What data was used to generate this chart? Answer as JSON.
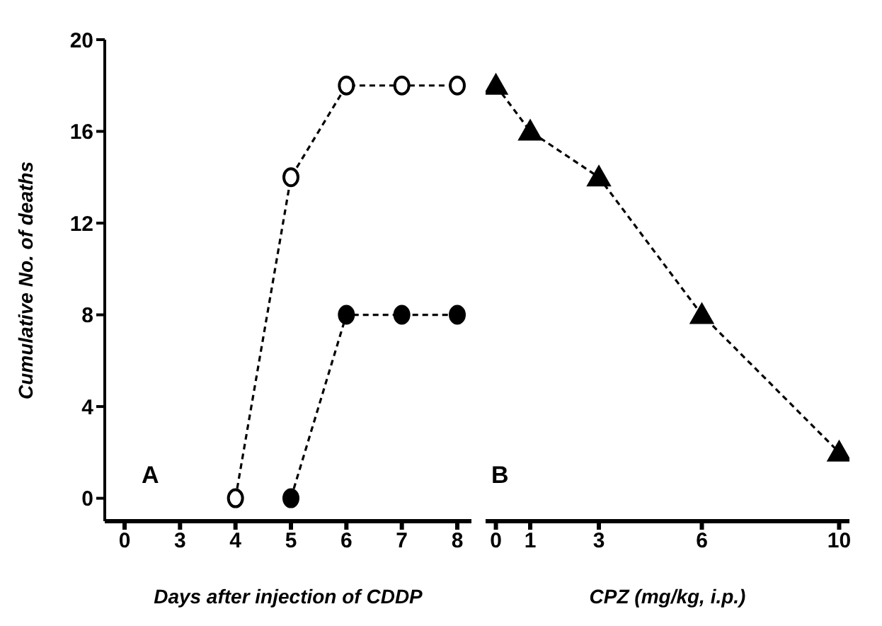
{
  "chart_data": [
    {
      "type": "line",
      "xlabel": "Days after injection of CDDP",
      "ylabel": "Cumulative No. of deaths",
      "categories": [
        "0",
        "3",
        "4",
        "5",
        "6",
        "7",
        "8"
      ],
      "ylim": [
        -1,
        20
      ],
      "yticks": [
        0,
        4,
        8,
        12,
        16,
        20
      ],
      "line_style": "dashed",
      "annotations": [
        "A"
      ],
      "series": [
        {
          "color": "#000000",
          "marker": "circle",
          "values": [
            null,
            null,
            0,
            14,
            18,
            18,
            18
          ]
        },
        {
          "color": "#000000",
          "marker": "circle",
          "values": [
            null,
            null,
            null,
            0,
            8,
            8,
            8
          ]
        }
      ]
    },
    {
      "type": "line",
      "xlabel": "CPZ (mg/kg, i.p.)",
      "x": [
        0,
        1,
        3,
        6,
        10
      ],
      "xlim": [
        -0.3,
        10.3
      ],
      "xticks": [
        0,
        1,
        3,
        6,
        10
      ],
      "ylim": [
        -1,
        20
      ],
      "tick_labels": "x",
      "line_style": "dashed",
      "annotations": [
        "B"
      ],
      "series": [
        {
          "color": "#000000",
          "marker": "triangle",
          "values": [
            18,
            16,
            14,
            8,
            2
          ]
        }
      ]
    }
  ]
}
